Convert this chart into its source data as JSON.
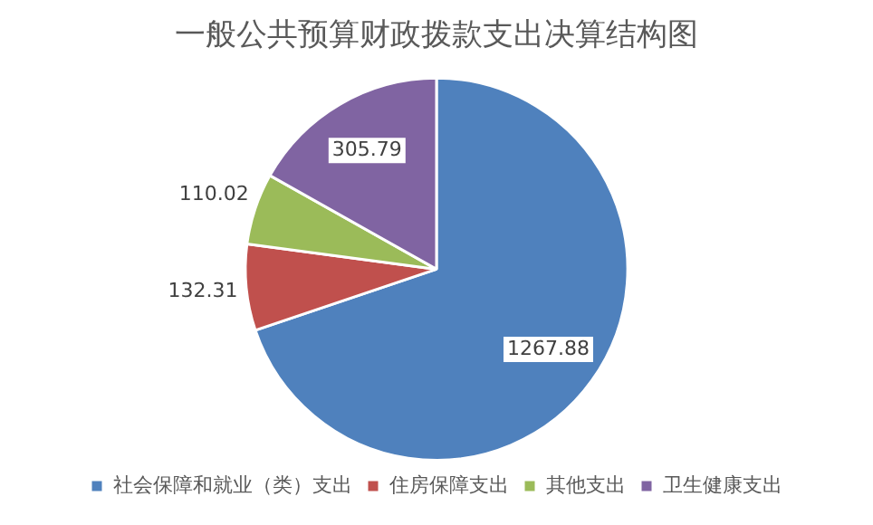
{
  "chart_data": {
    "type": "pie",
    "title": "一般公共预算财政拨款支出决算结构图",
    "categories": [
      "社会保障和就业（类）支出",
      "住房保障支出",
      "其他支出",
      "卫生健康支出"
    ],
    "values": [
      1267.88,
      132.31,
      110.02,
      305.79
    ],
    "colors": [
      "#4f81bd",
      "#c0504d",
      "#9bbb59",
      "#8064a2"
    ],
    "data_labels": true,
    "legend": "bottom"
  }
}
